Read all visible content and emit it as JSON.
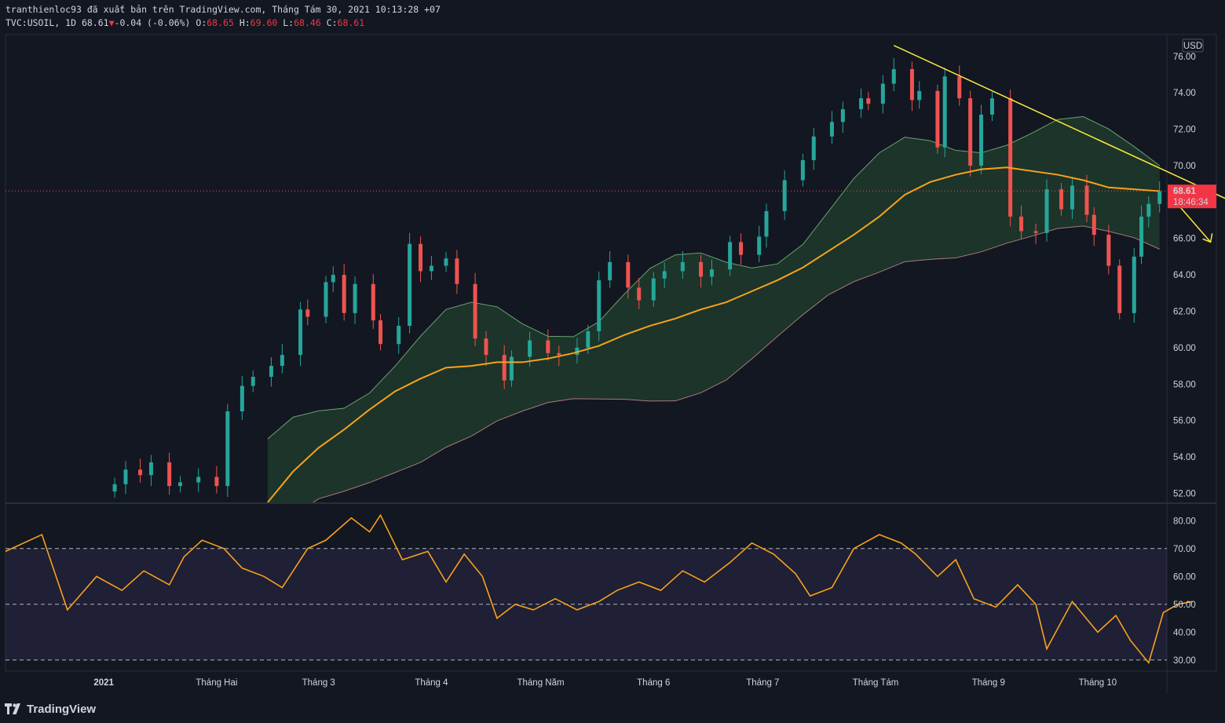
{
  "header": {
    "line1": "tranthienloc93 đã xuất bản trên TradingView.com, Tháng Tám 30, 2021 10:13:28 +07",
    "symbol": "TVC:USOIL, 1D",
    "last": "68.61",
    "change_arrow": "▼",
    "change": "-0.04 (-0.06%)",
    "o_label": "O:",
    "o": "68.65",
    "h_label": "H:",
    "h": "69.60",
    "l_label": "L:",
    "l": "68.46",
    "c_label": "C:",
    "c": "68.61"
  },
  "footer": {
    "brand": "TradingView"
  },
  "colors": {
    "background": "#131722",
    "up": "#26a69a",
    "down": "#ef5350",
    "ma": "#f7a21b",
    "rsi": "#f7a21b",
    "trendline": "#ffeb3b",
    "cloud_bull": "#1e3a2a",
    "cloud_bear": "#4a2126",
    "price_tag": "#f23645"
  },
  "chart_data": [
    {
      "type": "candlestick",
      "currency": "USD",
      "current_price": "68.61",
      "countdown": "18:46:34",
      "ylim": [
        51.5,
        77.2
      ],
      "y_ticks": [
        "76.00",
        "74.00",
        "72.00",
        "70.00",
        "68.00",
        "66.00",
        "64.00",
        "62.00",
        "60.00",
        "58.00",
        "56.00",
        "54.00",
        "52.00"
      ],
      "x_ticks": [
        "2021",
        "Tháng Hai",
        "Tháng 3",
        "Tháng 4",
        "Tháng Năm",
        "Tháng 6",
        "Tháng 7",
        "Tháng Tám",
        "Tháng 9",
        "Tháng 10"
      ],
      "x_tick_dates": [
        "2021-01-01",
        "2021-02-01",
        "2021-03-01",
        "2021-04-01",
        "2021-05-01",
        "2021-06-01",
        "2021-07-01",
        "2021-08-01",
        "2021-09-01",
        "2021-10-01"
      ],
      "x_range": [
        "2020-12-05",
        "2021-10-20"
      ],
      "closes": [
        [
          "2021-01-04",
          52.5
        ],
        [
          "2021-01-07",
          53.3
        ],
        [
          "2021-01-11",
          53.0
        ],
        [
          "2021-01-14",
          53.7
        ],
        [
          "2021-01-19",
          52.4
        ],
        [
          "2021-01-22",
          52.6
        ],
        [
          "2021-01-27",
          52.9
        ],
        [
          "2021-02-01",
          52.4
        ],
        [
          "2021-02-04",
          56.5
        ],
        [
          "2021-02-08",
          57.9
        ],
        [
          "2021-02-11",
          58.4
        ],
        [
          "2021-02-16",
          59.0
        ],
        [
          "2021-02-19",
          59.6
        ],
        [
          "2021-02-24",
          62.1
        ],
        [
          "2021-02-26",
          61.7
        ],
        [
          "2021-03-03",
          63.6
        ],
        [
          "2021-03-05",
          64.0
        ],
        [
          "2021-03-08",
          61.9
        ],
        [
          "2021-03-11",
          63.5
        ],
        [
          "2021-03-16",
          61.5
        ],
        [
          "2021-03-18",
          60.2
        ],
        [
          "2021-03-23",
          61.2
        ],
        [
          "2021-03-26",
          65.7
        ],
        [
          "2021-03-29",
          64.2
        ],
        [
          "2021-04-01",
          64.5
        ],
        [
          "2021-04-05",
          64.9
        ],
        [
          "2021-04-08",
          63.5
        ],
        [
          "2021-04-13",
          60.5
        ],
        [
          "2021-04-16",
          59.6
        ],
        [
          "2021-04-21",
          58.2
        ],
        [
          "2021-04-23",
          59.5
        ],
        [
          "2021-04-28",
          60.4
        ],
        [
          "2021-05-03",
          59.7
        ],
        [
          "2021-05-06",
          59.6
        ],
        [
          "2021-05-11",
          60.0
        ],
        [
          "2021-05-14",
          60.9
        ],
        [
          "2021-05-17",
          63.7
        ],
        [
          "2021-05-20",
          64.7
        ],
        [
          "2021-05-25",
          63.3
        ],
        [
          "2021-05-28",
          62.6
        ],
        [
          "2021-06-01",
          63.8
        ],
        [
          "2021-06-04",
          64.2
        ],
        [
          "2021-06-09",
          64.7
        ],
        [
          "2021-06-14",
          63.9
        ],
        [
          "2021-06-17",
          64.3
        ],
        [
          "2021-06-22",
          65.8
        ],
        [
          "2021-06-25",
          65.1
        ],
        [
          "2021-06-30",
          66.1
        ],
        [
          "2021-07-02",
          67.5
        ],
        [
          "2021-07-07",
          69.2
        ],
        [
          "2021-07-12",
          70.3
        ],
        [
          "2021-07-15",
          71.6
        ],
        [
          "2021-07-20",
          72.4
        ],
        [
          "2021-07-23",
          73.1
        ],
        [
          "2021-07-28",
          73.7
        ],
        [
          "2021-07-30",
          73.4
        ],
        [
          "2021-08-03",
          74.5
        ],
        [
          "2021-08-06",
          75.3
        ],
        [
          "2021-08-11",
          73.6
        ],
        [
          "2021-08-13",
          74.1
        ],
        [
          "2021-08-18",
          71.0
        ],
        [
          "2021-08-20",
          74.9
        ],
        [
          "2021-08-24",
          73.7
        ],
        [
          "2021-08-27",
          70.0
        ],
        [
          "2021-08-30",
          72.8
        ],
        [
          "2021-09-02",
          73.7
        ],
        [
          "2021-09-07",
          67.2
        ],
        [
          "2021-09-10",
          66.4
        ],
        [
          "2021-09-14",
          66.3
        ],
        [
          "2021-09-17",
          68.7
        ],
        [
          "2021-09-21",
          67.6
        ],
        [
          "2021-09-24",
          68.9
        ],
        [
          "2021-09-28",
          67.3
        ],
        [
          "2021-09-30",
          66.2
        ],
        [
          "2021-10-04",
          64.5
        ],
        [
          "2021-10-07",
          61.9
        ],
        [
          "2021-10-11",
          65.0
        ],
        [
          "2021-10-13",
          67.2
        ],
        [
          "2021-10-15",
          67.9
        ],
        [
          "2021-10-18",
          68.6
        ]
      ],
      "series": [
        {
          "name": "",
          "type": "line",
          "values": [
            [
              "2021-02-15",
              51.5
            ],
            [
              "2021-02-22",
              53.2
            ],
            [
              "2021-03-01",
              54.5
            ],
            [
              "2021-03-08",
              55.5
            ],
            [
              "2021-03-15",
              56.6
            ],
            [
              "2021-03-22",
              57.6
            ],
            [
              "2021-03-29",
              58.3
            ],
            [
              "2021-04-05",
              58.9
            ],
            [
              "2021-04-12",
              59.0
            ],
            [
              "2021-04-19",
              59.2
            ],
            [
              "2021-04-26",
              59.2
            ],
            [
              "2021-05-03",
              59.4
            ],
            [
              "2021-05-10",
              59.7
            ],
            [
              "2021-05-17",
              60.1
            ],
            [
              "2021-05-24",
              60.7
            ],
            [
              "2021-05-31",
              61.2
            ],
            [
              "2021-06-07",
              61.6
            ],
            [
              "2021-06-14",
              62.1
            ],
            [
              "2021-06-21",
              62.5
            ],
            [
              "2021-06-28",
              63.1
            ],
            [
              "2021-07-05",
              63.7
            ],
            [
              "2021-07-12",
              64.4
            ],
            [
              "2021-07-19",
              65.3
            ],
            [
              "2021-07-26",
              66.2
            ],
            [
              "2021-08-02",
              67.2
            ],
            [
              "2021-08-09",
              68.4
            ],
            [
              "2021-08-16",
              69.1
            ],
            [
              "2021-08-23",
              69.5
            ],
            [
              "2021-08-30",
              69.8
            ],
            [
              "2021-09-06",
              69.9
            ],
            [
              "2021-09-13",
              69.7
            ],
            [
              "2021-09-20",
              69.5
            ],
            [
              "2021-09-27",
              69.2
            ],
            [
              "2021-10-04",
              68.8
            ],
            [
              "2021-10-11",
              68.7
            ],
            [
              "2021-10-18",
              68.6
            ]
          ]
        }
      ],
      "annotations": [
        "downward trendline",
        "projected down arrow",
        "ichimoku cloud"
      ]
    },
    {
      "type": "line",
      "ylim": [
        26,
        86
      ],
      "y_ticks": [
        "80.00",
        "70.00",
        "60.00",
        "50.00",
        "40.00",
        "30.00"
      ],
      "levels": [
        70,
        50,
        30
      ],
      "series": [
        {
          "name": "",
          "values": [
            [
              "2020-12-05",
              69
            ],
            [
              "2020-12-15",
              75
            ],
            [
              "2020-12-22",
              48
            ],
            [
              "2020-12-30",
              60
            ],
            [
              "2021-01-06",
              55
            ],
            [
              "2021-01-12",
              62
            ],
            [
              "2021-01-19",
              57
            ],
            [
              "2021-01-23",
              67
            ],
            [
              "2021-01-28",
              73
            ],
            [
              "2021-02-03",
              70
            ],
            [
              "2021-02-08",
              63
            ],
            [
              "2021-02-14",
              60
            ],
            [
              "2021-02-19",
              56
            ],
            [
              "2021-02-26",
              70
            ],
            [
              "2021-03-03",
              73
            ],
            [
              "2021-03-10",
              81
            ],
            [
              "2021-03-15",
              76
            ],
            [
              "2021-03-18",
              82
            ],
            [
              "2021-03-24",
              66
            ],
            [
              "2021-03-31",
              69
            ],
            [
              "2021-04-05",
              58
            ],
            [
              "2021-04-10",
              68
            ],
            [
              "2021-04-15",
              60
            ],
            [
              "2021-04-19",
              45
            ],
            [
              "2021-04-24",
              50
            ],
            [
              "2021-04-29",
              48
            ],
            [
              "2021-05-05",
              52
            ],
            [
              "2021-05-11",
              48
            ],
            [
              "2021-05-17",
              51
            ],
            [
              "2021-05-22",
              55
            ],
            [
              "2021-05-28",
              58
            ],
            [
              "2021-06-03",
              55
            ],
            [
              "2021-06-09",
              62
            ],
            [
              "2021-06-15",
              58
            ],
            [
              "2021-06-22",
              65
            ],
            [
              "2021-06-28",
              72
            ],
            [
              "2021-07-04",
              68
            ],
            [
              "2021-07-10",
              61
            ],
            [
              "2021-07-14",
              53
            ],
            [
              "2021-07-20",
              56
            ],
            [
              "2021-07-26",
              70
            ],
            [
              "2021-08-02",
              75
            ],
            [
              "2021-08-08",
              72
            ],
            [
              "2021-08-12",
              68
            ],
            [
              "2021-08-18",
              60
            ],
            [
              "2021-08-23",
              66
            ],
            [
              "2021-08-28",
              52
            ],
            [
              "2021-09-03",
              49
            ],
            [
              "2021-09-09",
              57
            ],
            [
              "2021-09-14",
              50
            ],
            [
              "2021-09-17",
              34
            ],
            [
              "2021-09-24",
              51
            ],
            [
              "2021-10-01",
              40
            ],
            [
              "2021-10-06",
              46
            ],
            [
              "2021-10-10",
              37
            ],
            [
              "2021-10-15",
              29
            ],
            [
              "2021-10-19",
              47
            ],
            [
              "2021-10-23",
              50
            ],
            [
              "2021-10-27",
              51
            ]
          ]
        }
      ]
    }
  ]
}
